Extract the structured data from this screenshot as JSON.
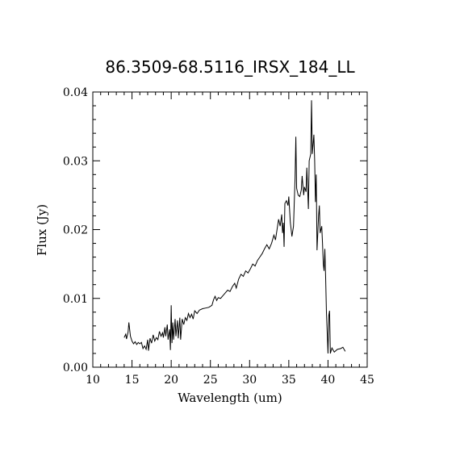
{
  "chart_data": {
    "type": "line",
    "title": "86.3509-68.5116_IRSX_184_LL",
    "xlabel": "Wavelength (um)",
    "ylabel": "Flux (Jy)",
    "xlim": [
      10,
      45
    ],
    "ylim": [
      0,
      0.04
    ],
    "x_ticks": [
      10,
      15,
      20,
      25,
      30,
      35,
      40,
      45
    ],
    "x_tick_labels": [
      "10",
      "15",
      "20",
      "25",
      "30",
      "35",
      "40",
      "45"
    ],
    "y_ticks": [
      0,
      0.01,
      0.02,
      0.03,
      0.04
    ],
    "y_tick_labels": [
      "0.00",
      "0.01",
      "0.02",
      "0.03",
      "0.04"
    ],
    "grid": false,
    "series": [
      {
        "color": "#000000",
        "points": [
          [
            14.0,
            0.0043
          ],
          [
            14.2,
            0.0048
          ],
          [
            14.3,
            0.0041
          ],
          [
            14.5,
            0.0051
          ],
          [
            14.6,
            0.0065
          ],
          [
            14.8,
            0.0045
          ],
          [
            15.0,
            0.0038
          ],
          [
            15.2,
            0.0034
          ],
          [
            15.4,
            0.0037
          ],
          [
            15.6,
            0.0033
          ],
          [
            15.8,
            0.0036
          ],
          [
            16.0,
            0.0034
          ],
          [
            16.2,
            0.0036
          ],
          [
            16.4,
            0.0027
          ],
          [
            16.6,
            0.0031
          ],
          [
            16.8,
            0.0026
          ],
          [
            17.0,
            0.004
          ],
          [
            17.1,
            0.0024
          ],
          [
            17.3,
            0.0042
          ],
          [
            17.5,
            0.0035
          ],
          [
            17.7,
            0.0047
          ],
          [
            17.9,
            0.0038
          ],
          [
            18.1,
            0.0043
          ],
          [
            18.3,
            0.004
          ],
          [
            18.5,
            0.0052
          ],
          [
            18.7,
            0.0045
          ],
          [
            18.9,
            0.005
          ],
          [
            19.0,
            0.0043
          ],
          [
            19.2,
            0.0058
          ],
          [
            19.3,
            0.0045
          ],
          [
            19.5,
            0.0062
          ],
          [
            19.6,
            0.004
          ],
          [
            19.8,
            0.0055
          ],
          [
            19.9,
            0.0025
          ],
          [
            20.0,
            0.009
          ],
          [
            20.1,
            0.0035
          ],
          [
            20.2,
            0.0065
          ],
          [
            20.3,
            0.004
          ],
          [
            20.5,
            0.007
          ],
          [
            20.6,
            0.0045
          ],
          [
            20.8,
            0.0068
          ],
          [
            20.9,
            0.0042
          ],
          [
            21.1,
            0.0072
          ],
          [
            21.2,
            0.004
          ],
          [
            21.4,
            0.007
          ],
          [
            21.6,
            0.0062
          ],
          [
            21.8,
            0.0072
          ],
          [
            22.0,
            0.0068
          ],
          [
            22.2,
            0.0078
          ],
          [
            22.4,
            0.0072
          ],
          [
            22.6,
            0.0077
          ],
          [
            22.8,
            0.007
          ],
          [
            23.0,
            0.0082
          ],
          [
            23.3,
            0.0078
          ],
          [
            23.6,
            0.0083
          ],
          [
            24.0,
            0.0085
          ],
          [
            24.4,
            0.0086
          ],
          [
            24.8,
            0.0087
          ],
          [
            25.2,
            0.009
          ],
          [
            25.4,
            0.0098
          ],
          [
            25.6,
            0.0103
          ],
          [
            25.8,
            0.0097
          ],
          [
            26.0,
            0.0101
          ],
          [
            26.3,
            0.01
          ],
          [
            26.6,
            0.0104
          ],
          [
            26.9,
            0.0108
          ],
          [
            27.2,
            0.0112
          ],
          [
            27.5,
            0.011
          ],
          [
            27.8,
            0.0117
          ],
          [
            28.1,
            0.0122
          ],
          [
            28.3,
            0.0115
          ],
          [
            28.6,
            0.0128
          ],
          [
            28.9,
            0.0135
          ],
          [
            29.2,
            0.0132
          ],
          [
            29.5,
            0.014
          ],
          [
            29.8,
            0.0137
          ],
          [
            30.1,
            0.0143
          ],
          [
            30.4,
            0.015
          ],
          [
            30.7,
            0.0147
          ],
          [
            31.0,
            0.0155
          ],
          [
            31.3,
            0.016
          ],
          [
            31.6,
            0.0165
          ],
          [
            31.9,
            0.0172
          ],
          [
            32.2,
            0.0178
          ],
          [
            32.5,
            0.0172
          ],
          [
            32.8,
            0.018
          ],
          [
            33.1,
            0.0192
          ],
          [
            33.3,
            0.0185
          ],
          [
            33.5,
            0.02
          ],
          [
            33.7,
            0.0215
          ],
          [
            33.9,
            0.0205
          ],
          [
            34.1,
            0.0222
          ],
          [
            34.2,
            0.0195
          ],
          [
            34.3,
            0.021
          ],
          [
            34.4,
            0.0175
          ],
          [
            34.5,
            0.0238
          ],
          [
            34.7,
            0.0242
          ],
          [
            34.9,
            0.0235
          ],
          [
            35.0,
            0.0248
          ],
          [
            35.2,
            0.021
          ],
          [
            35.4,
            0.019
          ],
          [
            35.6,
            0.0205
          ],
          [
            35.8,
            0.0275
          ],
          [
            35.9,
            0.0335
          ],
          [
            36.0,
            0.026
          ],
          [
            36.2,
            0.025
          ],
          [
            36.4,
            0.0248
          ],
          [
            36.6,
            0.0258
          ],
          [
            36.7,
            0.0278
          ],
          [
            36.9,
            0.025
          ],
          [
            37.0,
            0.0262
          ],
          [
            37.2,
            0.0255
          ],
          [
            37.3,
            0.029
          ],
          [
            37.5,
            0.023
          ],
          [
            37.6,
            0.03
          ],
          [
            37.8,
            0.031
          ],
          [
            37.9,
            0.0388
          ],
          [
            38.0,
            0.031
          ],
          [
            38.2,
            0.0338
          ],
          [
            38.3,
            0.03
          ],
          [
            38.4,
            0.024
          ],
          [
            38.5,
            0.028
          ],
          [
            38.6,
            0.017
          ],
          [
            38.8,
            0.022
          ],
          [
            38.9,
            0.0235
          ],
          [
            39.0,
            0.0195
          ],
          [
            39.2,
            0.0205
          ],
          [
            39.3,
            0.018
          ],
          [
            39.4,
            0.015
          ],
          [
            39.5,
            0.014
          ],
          [
            39.6,
            0.0172
          ],
          [
            39.7,
            0.013
          ],
          [
            39.8,
            0.008
          ],
          [
            39.9,
            0.005
          ],
          [
            40.0,
            0.002
          ],
          [
            40.1,
            0.0075
          ],
          [
            40.2,
            0.0082
          ],
          [
            40.3,
            0.002
          ],
          [
            40.5,
            0.0028
          ],
          [
            40.8,
            0.0022
          ],
          [
            41.2,
            0.0026
          ],
          [
            41.6,
            0.0027
          ],
          [
            41.9,
            0.0029
          ],
          [
            42.2,
            0.0023
          ]
        ]
      }
    ]
  }
}
